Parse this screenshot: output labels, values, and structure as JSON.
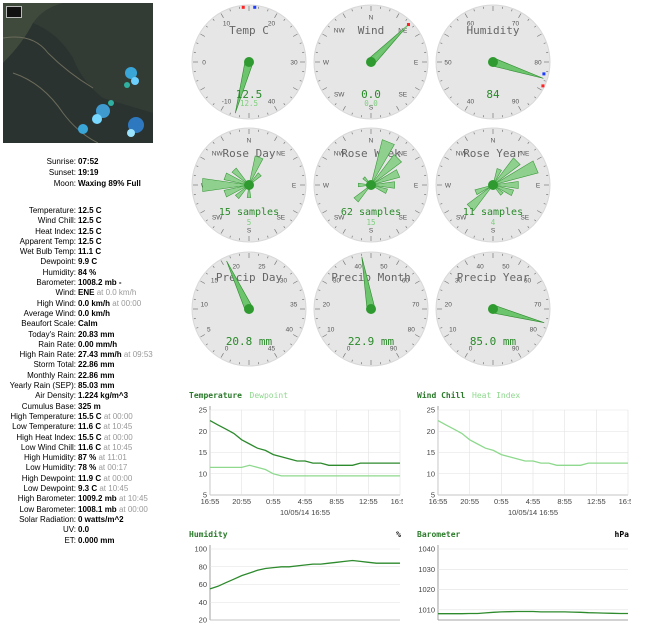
{
  "astronomy": [
    {
      "label": "Sunrise:",
      "value": "07:52"
    },
    {
      "label": "Sunset:",
      "value": "19:19"
    },
    {
      "label": "Moon:",
      "value": "Waxing 89% Full"
    }
  ],
  "stats": [
    {
      "label": "Temperature:",
      "value": "12.5 C"
    },
    {
      "label": "Wind Chill:",
      "value": "12.5 C"
    },
    {
      "label": "Heat Index:",
      "value": "12.5 C"
    },
    {
      "label": "Apparent Temp:",
      "value": "12.5 C"
    },
    {
      "label": "Wet Bulb Temp:",
      "value": "11.1 C"
    },
    {
      "label": "Dewpoint:",
      "value": "9.9 C"
    },
    {
      "label": "Humidity:",
      "value": "84 %"
    },
    {
      "label": "Barometer:",
      "value": "1008.2 mb -"
    },
    {
      "label": "Wind:",
      "value": "ENE",
      "ts": "at 0.0 km/h"
    },
    {
      "label": "High Wind:",
      "value": "0.0 km/h",
      "ts": "at 00:00"
    },
    {
      "label": "Average Wind:",
      "value": "0.0 km/h"
    },
    {
      "label": "Beaufort Scale:",
      "value": "Calm"
    },
    {
      "label": "Today's Rain:",
      "value": "20.83 mm"
    },
    {
      "label": "Rain Rate:",
      "value": "0.00 mm/h"
    },
    {
      "label": "High Rain Rate:",
      "value": "27.43 mm/h",
      "ts": "at 09:53"
    },
    {
      "label": "Storm Total:",
      "value": "22.86 mm"
    },
    {
      "label": "Monthly Rain:",
      "value": "22.86 mm"
    },
    {
      "label": "Yearly Rain (SEP):",
      "value": "85.03 mm"
    },
    {
      "label": "Air Density:",
      "value": "1.224 kg/m^3"
    },
    {
      "label": "Cumulus Base:",
      "value": "325 m"
    },
    {
      "label": "High Temperature:",
      "value": "15.5 C",
      "ts": "at 00:00"
    },
    {
      "label": "Low Temperature:",
      "value": "11.6 C",
      "ts": "at 10:45"
    },
    {
      "label": "High Heat Index:",
      "value": "15.5 C",
      "ts": "at 00:00"
    },
    {
      "label": "Low Wind Chill:",
      "value": "11.6 C",
      "ts": "at 10:45"
    },
    {
      "label": "High Humidity:",
      "value": "87 %",
      "ts": "at 11:01"
    },
    {
      "label": "Low Humidity:",
      "value": "78 %",
      "ts": "at 00:17"
    },
    {
      "label": "High Dewpoint:",
      "value": "11.9 C",
      "ts": "at 00:00"
    },
    {
      "label": "Low Dewpoint:",
      "value": "9.3 C",
      "ts": "at 10:45"
    },
    {
      "label": "High Barometer:",
      "value": "1009.2 mb",
      "ts": "at 10:45"
    },
    {
      "label": "Low Barometer:",
      "value": "1008.1 mb",
      "ts": "at 00:00"
    },
    {
      "label": "Solar Radiation:",
      "value": "0 watts/m^2"
    },
    {
      "label": "UV:",
      "value": "0.0"
    },
    {
      "label": "ET:",
      "value": "0.000 mm"
    }
  ],
  "gauges": {
    "temp": {
      "title": "Temp C",
      "ticks": [
        "-10",
        "0",
        "10",
        "20",
        "30",
        "40"
      ],
      "value": "12.5",
      "sub": "12.5",
      "needle_deg": 195,
      "min_mark_deg": 6,
      "max_mark_deg": -6
    },
    "wind": {
      "title": "Wind",
      "ticks": [
        "N",
        "NE",
        "E",
        "SE",
        "S",
        "SW",
        "W",
        "NW"
      ],
      "value": "0.0",
      "sub": "0.0",
      "needle_deg": 45
    },
    "humidity": {
      "title": "Humidity",
      "ticks": [
        "40",
        "50",
        "60",
        "70",
        "80",
        "90"
      ],
      "value": "84",
      "needle_deg": 108
    },
    "rose_day": {
      "title": "Rose Day",
      "ticks": [
        "N",
        "NE",
        "E",
        "SE",
        "S",
        "SW",
        "W",
        "NW"
      ],
      "value": "15 samples",
      "sub": "5",
      "petals": [
        [
          270,
          55
        ],
        [
          250,
          30
        ],
        [
          290,
          30
        ],
        [
          315,
          25
        ],
        [
          20,
          35
        ],
        [
          45,
          18
        ],
        [
          225,
          20
        ],
        [
          180,
          15
        ]
      ]
    },
    "rose_week": {
      "title": "Rose Week",
      "ticks": [
        "N",
        "NE",
        "E",
        "SE",
        "S",
        "SW",
        "W",
        "NW"
      ],
      "value": "62 samples",
      "sub": "15",
      "petals": [
        [
          22,
          55
        ],
        [
          45,
          45
        ],
        [
          67,
          35
        ],
        [
          90,
          28
        ],
        [
          112,
          20
        ],
        [
          225,
          25
        ],
        [
          270,
          15
        ],
        [
          315,
          12
        ]
      ]
    },
    "rose_year": {
      "title": "Rose Year",
      "ticks": [
        "N",
        "NE",
        "E",
        "SE",
        "S",
        "SW",
        "W",
        "NW"
      ],
      "value": "11 samples",
      "sub": "4",
      "petals": [
        [
          67,
          55
        ],
        [
          45,
          40
        ],
        [
          90,
          30
        ],
        [
          112,
          25
        ],
        [
          225,
          38
        ],
        [
          247,
          22
        ],
        [
          22,
          20
        ],
        [
          135,
          15
        ]
      ]
    },
    "precip_day": {
      "title": "Precip Day",
      "ticks": [
        "0",
        "5",
        "10",
        "15",
        "20",
        "25",
        "30",
        "35",
        "40",
        "45"
      ],
      "value": "20.8 mm",
      "needle_deg": -25
    },
    "precip_month": {
      "title": "Precip Month",
      "ticks": [
        "0",
        "10",
        "20",
        "30",
        "40",
        "50",
        "60",
        "70",
        "80",
        "90"
      ],
      "value": "22.9 mm",
      "needle_deg": -10
    },
    "precip_year": {
      "title": "Precip Year",
      "ticks": [
        "0",
        "10",
        "20",
        "30",
        "40",
        "50",
        "60",
        "70",
        "80",
        "90"
      ],
      "value": "85.0 mm",
      "needle_deg": 105
    }
  },
  "charts": {
    "temperature": {
      "title": "Temperature",
      "title2": "Dewpoint",
      "unit": "",
      "ylim": [
        5,
        25
      ],
      "yticks": [
        "5",
        "10",
        "15",
        "20",
        "25"
      ],
      "xticks": [
        "16:55",
        "20:55",
        "0:55",
        "4:55",
        "8:55",
        "12:55",
        "16:55"
      ],
      "xcaption": "10/05/14 16:55",
      "series": [
        {
          "name": "Temperature",
          "color": "#2d8a2d",
          "values": [
            22.5,
            21.5,
            20.5,
            19.5,
            18.0,
            17.0,
            16.0,
            15.5,
            14.5,
            14.0,
            13.5,
            13.0,
            13.0,
            12.5,
            12.5,
            12.0,
            12.0,
            12.0,
            12.0,
            12.5,
            12.5,
            12.5,
            12.5,
            12.5,
            12.5
          ]
        },
        {
          "name": "Dewpoint",
          "color": "#8ed98e",
          "values": [
            11.5,
            11.5,
            11.5,
            11.5,
            11.5,
            12.0,
            11.5,
            11.0,
            10.0,
            9.5,
            9.5,
            9.5,
            9.5,
            9.5,
            9.5,
            9.5,
            9.5,
            9.5,
            9.5,
            9.5,
            9.5,
            9.5,
            9.5,
            9.5,
            9.5
          ]
        }
      ]
    },
    "windchill": {
      "title": "Wind Chill",
      "title2": "Heat Index",
      "unit": "",
      "ylim": [
        5,
        25
      ],
      "yticks": [
        "5",
        "10",
        "15",
        "20",
        "25"
      ],
      "xticks": [
        "16:55",
        "20:55",
        "0:55",
        "4:55",
        "8:55",
        "12:55",
        "16:55"
      ],
      "xcaption": "10/05/14 16:55",
      "series": [
        {
          "name": "Wind Chill",
          "color": "#8ed98e",
          "values": [
            22.5,
            21.5,
            20.5,
            19.5,
            18.0,
            17.0,
            16.0,
            15.5,
            14.5,
            14.0,
            13.5,
            13.0,
            13.0,
            12.5,
            12.5,
            12.0,
            12.0,
            12.0,
            12.0,
            12.5,
            12.5,
            12.5,
            12.5,
            12.5,
            12.5
          ]
        }
      ]
    },
    "humidity": {
      "title": "Humidity",
      "title2": "",
      "unit": "%",
      "ylim": [
        20,
        100
      ],
      "yticks": [
        "20",
        "40",
        "60",
        "80",
        "100"
      ],
      "xticks": [],
      "xcaption": "",
      "series": [
        {
          "name": "Humidity",
          "color": "#2d8a2d",
          "values": [
            55,
            58,
            62,
            66,
            70,
            73,
            76,
            78,
            79,
            80,
            80,
            81,
            82,
            83,
            83,
            84,
            85,
            86,
            87,
            86,
            85,
            84,
            84,
            84,
            84
          ]
        }
      ]
    },
    "barometer": {
      "title": "Barometer",
      "title2": "",
      "unit": "hPa",
      "ylim": [
        1005,
        1040
      ],
      "yticks": [
        "1010",
        "1020",
        "1030",
        "1040"
      ],
      "xticks": [],
      "xcaption": "",
      "series": [
        {
          "name": "Barometer",
          "color": "#2d8a2d",
          "values": [
            1008.1,
            1008.1,
            1008.1,
            1008.1,
            1008.2,
            1008.2,
            1008.5,
            1008.8,
            1009.0,
            1009.1,
            1009.2,
            1009.2,
            1009.2,
            1009.0,
            1009.0,
            1009.0,
            1009.0,
            1008.9,
            1008.8,
            1008.6,
            1008.5,
            1008.4,
            1008.3,
            1008.2,
            1008.2
          ]
        }
      ]
    }
  }
}
